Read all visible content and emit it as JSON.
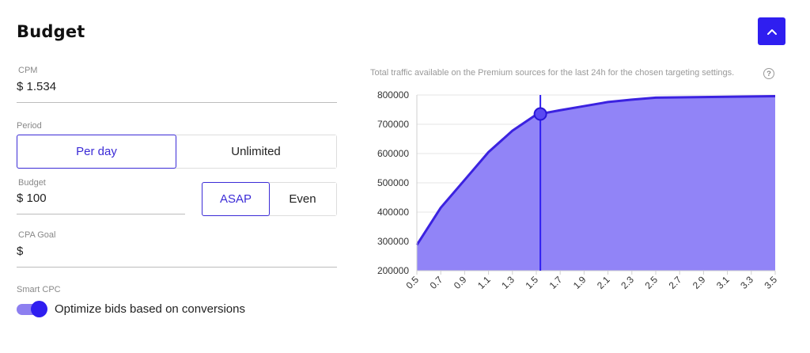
{
  "section": {
    "title": "Budget"
  },
  "cpm": {
    "label": "CPM",
    "value": "$ 1.534"
  },
  "period": {
    "label": "Period",
    "options": [
      {
        "label": "Per day",
        "selected": true
      },
      {
        "label": "Unlimited",
        "selected": false
      }
    ]
  },
  "budget": {
    "label": "Budget",
    "value": "$ 100"
  },
  "pacing": {
    "options": [
      {
        "label": "ASAP",
        "selected": true
      },
      {
        "label": "Even",
        "selected": false
      }
    ]
  },
  "cpa_goal": {
    "label": "CPA Goal",
    "value": "$"
  },
  "smart_cpc": {
    "label": "Smart CPC",
    "toggle_label": "Optimize bids based on conversions",
    "enabled": true
  },
  "chart_caption": "Total traffic available on the Premium sources for the last 24h for the chosen targeting settings.",
  "help_icon_text": "?",
  "icons": {
    "collapse": "chevron-up-icon",
    "help": "question-circle-icon"
  },
  "colors": {
    "accent": "#2f1ef0",
    "area_fill": "#9184f7",
    "line": "#3b22e0"
  },
  "chart_data": {
    "type": "area",
    "x": [
      0.5,
      0.7,
      0.9,
      1.1,
      1.3,
      1.5,
      1.7,
      1.9,
      2.1,
      2.3,
      2.5,
      2.7,
      2.9,
      3.1,
      3.3,
      3.5
    ],
    "values": [
      288000,
      415000,
      510000,
      605000,
      678000,
      733000,
      748000,
      762000,
      776000,
      784000,
      791000,
      792000,
      793000,
      794000,
      795000,
      796000
    ],
    "x_ticks": [
      "0.5",
      "0.7",
      "0.9",
      "1.1",
      "1.3",
      "1.5",
      "1.7",
      "1.9",
      "2.1",
      "2.3",
      "2.5",
      "2.7",
      "2.9",
      "3.1",
      "3.3",
      "3.5"
    ],
    "y_ticks": [
      "200000",
      "300000",
      "400000",
      "500000",
      "600000",
      "700000",
      "800000"
    ],
    "ylim": [
      200000,
      800000
    ],
    "xlim": [
      0.5,
      3.5
    ],
    "marker": {
      "x": 1.534,
      "y": 735000
    },
    "grid": true,
    "xlabel": "",
    "ylabel": ""
  }
}
